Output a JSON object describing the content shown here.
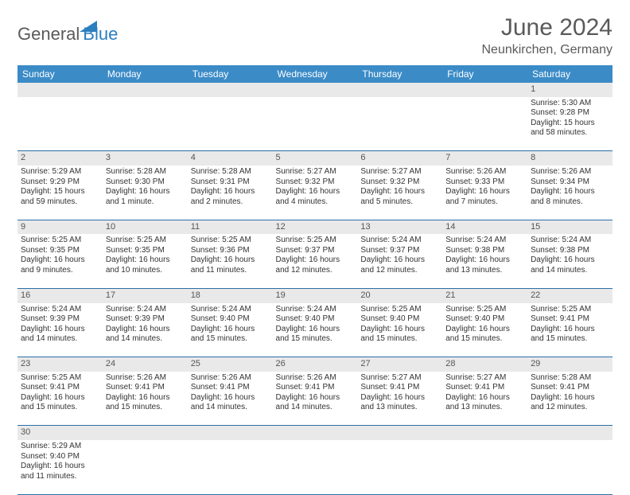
{
  "brand": {
    "part1": "General",
    "part2": "Blue",
    "logo_color": "#2a7fbf",
    "text_color": "#5a5a5a"
  },
  "title": "June 2024",
  "location": "Neunkirchen, Germany",
  "colors": {
    "header_bg": "#3b8bc7",
    "header_text": "#ffffff",
    "daynum_bg": "#e9e9e9",
    "row_divider": "#2a6fa8",
    "body_text": "#333333"
  },
  "weekdays": [
    "Sunday",
    "Monday",
    "Tuesday",
    "Wednesday",
    "Thursday",
    "Friday",
    "Saturday"
  ],
  "weeks": [
    [
      null,
      null,
      null,
      null,
      null,
      null,
      {
        "d": "1",
        "sr": "Sunrise: 5:30 AM",
        "ss": "Sunset: 9:28 PM",
        "dl": "Daylight: 15 hours and 58 minutes."
      }
    ],
    [
      {
        "d": "2",
        "sr": "Sunrise: 5:29 AM",
        "ss": "Sunset: 9:29 PM",
        "dl": "Daylight: 15 hours and 59 minutes."
      },
      {
        "d": "3",
        "sr": "Sunrise: 5:28 AM",
        "ss": "Sunset: 9:30 PM",
        "dl": "Daylight: 16 hours and 1 minute."
      },
      {
        "d": "4",
        "sr": "Sunrise: 5:28 AM",
        "ss": "Sunset: 9:31 PM",
        "dl": "Daylight: 16 hours and 2 minutes."
      },
      {
        "d": "5",
        "sr": "Sunrise: 5:27 AM",
        "ss": "Sunset: 9:32 PM",
        "dl": "Daylight: 16 hours and 4 minutes."
      },
      {
        "d": "6",
        "sr": "Sunrise: 5:27 AM",
        "ss": "Sunset: 9:32 PM",
        "dl": "Daylight: 16 hours and 5 minutes."
      },
      {
        "d": "7",
        "sr": "Sunrise: 5:26 AM",
        "ss": "Sunset: 9:33 PM",
        "dl": "Daylight: 16 hours and 7 minutes."
      },
      {
        "d": "8",
        "sr": "Sunrise: 5:26 AM",
        "ss": "Sunset: 9:34 PM",
        "dl": "Daylight: 16 hours and 8 minutes."
      }
    ],
    [
      {
        "d": "9",
        "sr": "Sunrise: 5:25 AM",
        "ss": "Sunset: 9:35 PM",
        "dl": "Daylight: 16 hours and 9 minutes."
      },
      {
        "d": "10",
        "sr": "Sunrise: 5:25 AM",
        "ss": "Sunset: 9:35 PM",
        "dl": "Daylight: 16 hours and 10 minutes."
      },
      {
        "d": "11",
        "sr": "Sunrise: 5:25 AM",
        "ss": "Sunset: 9:36 PM",
        "dl": "Daylight: 16 hours and 11 minutes."
      },
      {
        "d": "12",
        "sr": "Sunrise: 5:25 AM",
        "ss": "Sunset: 9:37 PM",
        "dl": "Daylight: 16 hours and 12 minutes."
      },
      {
        "d": "13",
        "sr": "Sunrise: 5:24 AM",
        "ss": "Sunset: 9:37 PM",
        "dl": "Daylight: 16 hours and 12 minutes."
      },
      {
        "d": "14",
        "sr": "Sunrise: 5:24 AM",
        "ss": "Sunset: 9:38 PM",
        "dl": "Daylight: 16 hours and 13 minutes."
      },
      {
        "d": "15",
        "sr": "Sunrise: 5:24 AM",
        "ss": "Sunset: 9:38 PM",
        "dl": "Daylight: 16 hours and 14 minutes."
      }
    ],
    [
      {
        "d": "16",
        "sr": "Sunrise: 5:24 AM",
        "ss": "Sunset: 9:39 PM",
        "dl": "Daylight: 16 hours and 14 minutes."
      },
      {
        "d": "17",
        "sr": "Sunrise: 5:24 AM",
        "ss": "Sunset: 9:39 PM",
        "dl": "Daylight: 16 hours and 14 minutes."
      },
      {
        "d": "18",
        "sr": "Sunrise: 5:24 AM",
        "ss": "Sunset: 9:40 PM",
        "dl": "Daylight: 16 hours and 15 minutes."
      },
      {
        "d": "19",
        "sr": "Sunrise: 5:24 AM",
        "ss": "Sunset: 9:40 PM",
        "dl": "Daylight: 16 hours and 15 minutes."
      },
      {
        "d": "20",
        "sr": "Sunrise: 5:25 AM",
        "ss": "Sunset: 9:40 PM",
        "dl": "Daylight: 16 hours and 15 minutes."
      },
      {
        "d": "21",
        "sr": "Sunrise: 5:25 AM",
        "ss": "Sunset: 9:40 PM",
        "dl": "Daylight: 16 hours and 15 minutes."
      },
      {
        "d": "22",
        "sr": "Sunrise: 5:25 AM",
        "ss": "Sunset: 9:41 PM",
        "dl": "Daylight: 16 hours and 15 minutes."
      }
    ],
    [
      {
        "d": "23",
        "sr": "Sunrise: 5:25 AM",
        "ss": "Sunset: 9:41 PM",
        "dl": "Daylight: 16 hours and 15 minutes."
      },
      {
        "d": "24",
        "sr": "Sunrise: 5:26 AM",
        "ss": "Sunset: 9:41 PM",
        "dl": "Daylight: 16 hours and 15 minutes."
      },
      {
        "d": "25",
        "sr": "Sunrise: 5:26 AM",
        "ss": "Sunset: 9:41 PM",
        "dl": "Daylight: 16 hours and 14 minutes."
      },
      {
        "d": "26",
        "sr": "Sunrise: 5:26 AM",
        "ss": "Sunset: 9:41 PM",
        "dl": "Daylight: 16 hours and 14 minutes."
      },
      {
        "d": "27",
        "sr": "Sunrise: 5:27 AM",
        "ss": "Sunset: 9:41 PM",
        "dl": "Daylight: 16 hours and 13 minutes."
      },
      {
        "d": "28",
        "sr": "Sunrise: 5:27 AM",
        "ss": "Sunset: 9:41 PM",
        "dl": "Daylight: 16 hours and 13 minutes."
      },
      {
        "d": "29",
        "sr": "Sunrise: 5:28 AM",
        "ss": "Sunset: 9:41 PM",
        "dl": "Daylight: 16 hours and 12 minutes."
      }
    ],
    [
      {
        "d": "30",
        "sr": "Sunrise: 5:29 AM",
        "ss": "Sunset: 9:40 PM",
        "dl": "Daylight: 16 hours and 11 minutes."
      },
      null,
      null,
      null,
      null,
      null,
      null
    ]
  ]
}
